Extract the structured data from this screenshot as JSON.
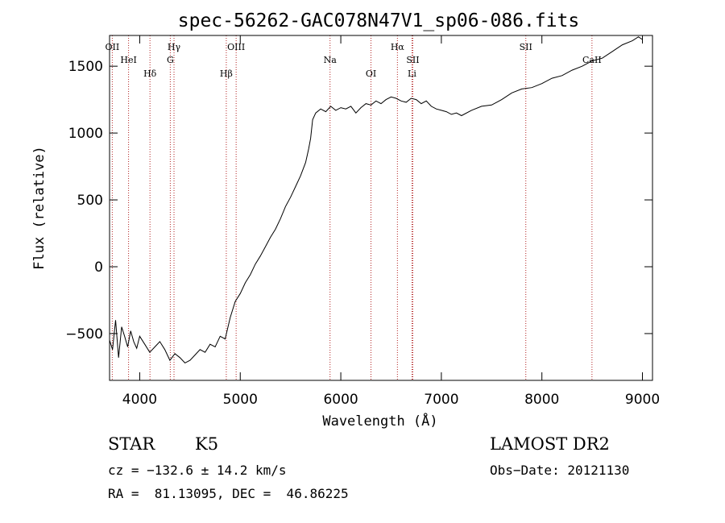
{
  "chart_data": {
    "type": "line",
    "title": "spec-56262-GAC078N47V1_sp06-086.fits",
    "xlabel": "Wavelength (Å)",
    "ylabel": "Flux (relative)",
    "xlim": [
      3700,
      9100
    ],
    "ylim": [
      -850,
      1730
    ],
    "x_ticks": [
      4000,
      5000,
      6000,
      7000,
      8000,
      9000
    ],
    "y_ticks": [
      -500,
      0,
      500,
      1000,
      1500
    ],
    "grid": false,
    "series": [
      {
        "color": "#000000",
        "x": [
          3700,
          3730,
          3760,
          3790,
          3820,
          3850,
          3880,
          3910,
          3940,
          3970,
          4000,
          4050,
          4100,
          4150,
          4200,
          4250,
          4300,
          4350,
          4400,
          4450,
          4500,
          4550,
          4600,
          4650,
          4700,
          4750,
          4800,
          4850,
          4900,
          4950,
          5000,
          5050,
          5100,
          5150,
          5200,
          5250,
          5300,
          5350,
          5400,
          5450,
          5500,
          5550,
          5600,
          5650,
          5680,
          5700,
          5720,
          5750,
          5800,
          5850,
          5900,
          5950,
          6000,
          6050,
          6100,
          6150,
          6200,
          6250,
          6300,
          6350,
          6400,
          6450,
          6500,
          6550,
          6600,
          6650,
          6700,
          6750,
          6800,
          6850,
          6900,
          6950,
          7000,
          7050,
          7100,
          7150,
          7200,
          7300,
          7400,
          7500,
          7600,
          7700,
          7800,
          7900,
          8000,
          8100,
          8200,
          8300,
          8400,
          8500,
          8600,
          8700,
          8800,
          8900,
          8960,
          9000
        ],
        "y": [
          -550,
          -620,
          -400,
          -680,
          -450,
          -520,
          -600,
          -480,
          -560,
          -610,
          -520,
          -580,
          -640,
          -600,
          -560,
          -620,
          -700,
          -650,
          -680,
          -720,
          -700,
          -660,
          -620,
          -640,
          -580,
          -600,
          -520,
          -540,
          -380,
          -260,
          -200,
          -120,
          -60,
          20,
          80,
          150,
          220,
          280,
          360,
          450,
          520,
          600,
          680,
          780,
          880,
          960,
          1100,
          1150,
          1180,
          1160,
          1200,
          1170,
          1190,
          1180,
          1200,
          1150,
          1190,
          1220,
          1210,
          1240,
          1220,
          1250,
          1270,
          1260,
          1240,
          1230,
          1260,
          1250,
          1220,
          1240,
          1200,
          1180,
          1170,
          1160,
          1140,
          1150,
          1130,
          1170,
          1200,
          1210,
          1250,
          1300,
          1330,
          1340,
          1370,
          1410,
          1430,
          1470,
          1500,
          1540,
          1560,
          1610,
          1660,
          1690,
          1720,
          1700
        ]
      }
    ],
    "line_markers": [
      {
        "label": "OII",
        "x": 3727,
        "color": "#b22222"
      },
      {
        "label": "HeI",
        "x": 3889,
        "color": "#b22222"
      },
      {
        "label": "Hδ",
        "x": 4102,
        "color": "#b22222"
      },
      {
        "label": "Hγ",
        "x": 4341,
        "color": "#b22222"
      },
      {
        "label": "G",
        "x": 4304,
        "color": "#b22222"
      },
      {
        "label": "Hβ",
        "x": 4861,
        "color": "#b22222"
      },
      {
        "label": "OIII",
        "x": 4959,
        "color": "#b22222"
      },
      {
        "label": "Na",
        "x": 5893,
        "color": "#b22222"
      },
      {
        "label": "OI",
        "x": 6300,
        "color": "#b22222"
      },
      {
        "label": "Hα",
        "x": 6563,
        "color": "#b22222"
      },
      {
        "label": "SII",
        "x": 6716,
        "color": "#b22222"
      },
      {
        "label": "Li",
        "x": 6708,
        "color": "#b22222"
      },
      {
        "label": "SII",
        "x": 7840,
        "color": "#b22222"
      },
      {
        "label": "CaII",
        "x": 8498,
        "color": "#b22222"
      }
    ]
  },
  "info": {
    "class_label": "STAR",
    "subclass": "K5",
    "survey": "LAMOST DR2",
    "cz": "cz = −132.6 ± 14.2 km/s",
    "obs_date": "Obs−Date: 20121130",
    "radec": "RA =  81.13095, DEC =  46.86225"
  }
}
